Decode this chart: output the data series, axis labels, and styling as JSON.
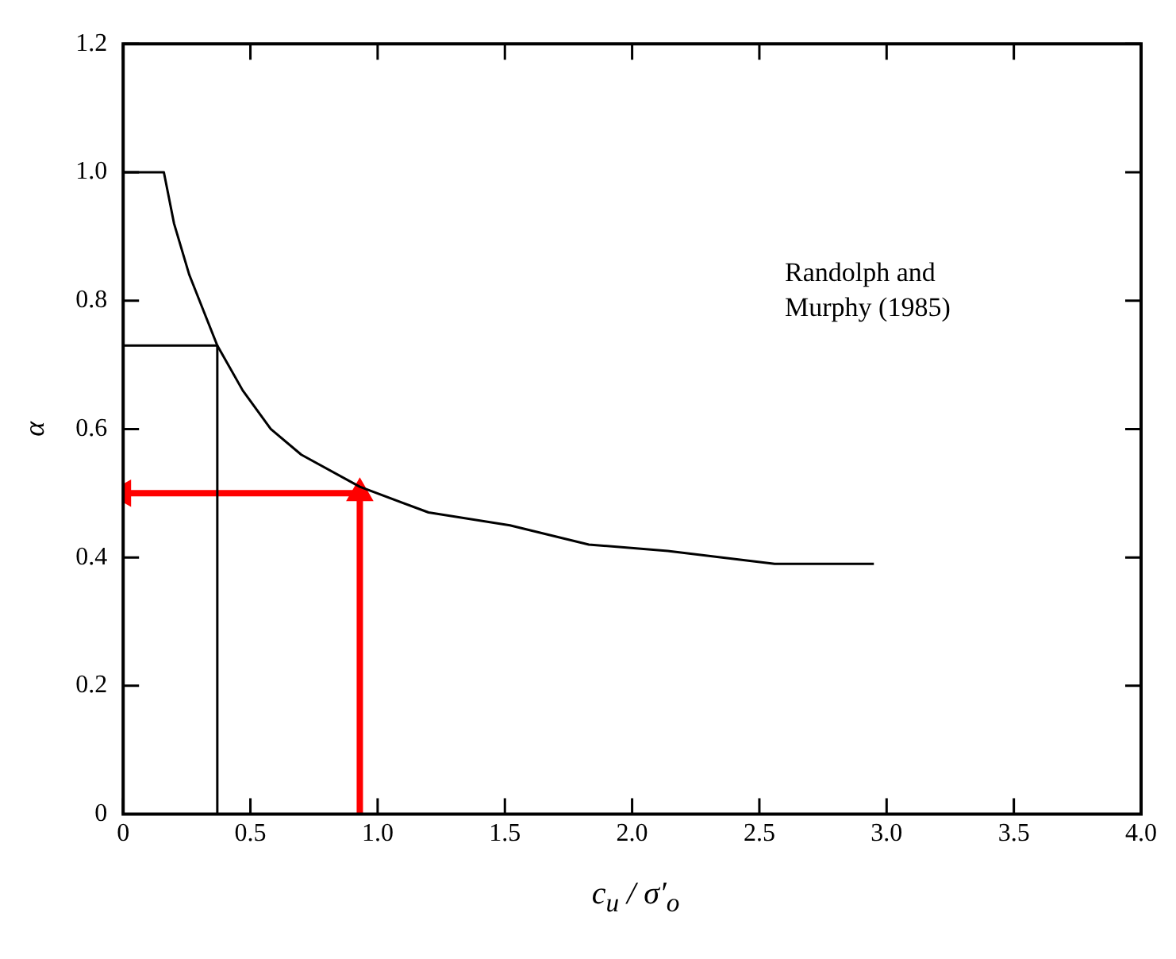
{
  "chart_data": {
    "type": "line",
    "xlabel": "c$_{u}$ / σ′$_{o}$",
    "ylabel": "α",
    "annotations": [
      "Randolph and Murphy (1985)"
    ],
    "xlim": [
      0,
      4
    ],
    "xticks": [
      0,
      0.5,
      {
        "value": 1,
        "label": "1.0"
      },
      1.5,
      {
        "value": 2,
        "label": "2.0"
      },
      2.5,
      {
        "value": 3,
        "label": "3.0"
      },
      3.5,
      {
        "value": 4,
        "label": "4.0"
      }
    ],
    "ylim": [
      0,
      1.2
    ],
    "yticks": [
      0,
      0.2,
      0.4,
      0.6,
      0.8,
      {
        "value": 1,
        "label": "1.0"
      },
      1.2
    ],
    "grid": false,
    "legend": false,
    "marker": "none",
    "series": [
      {
        "color": "#000000",
        "x": [
          0,
          0.16,
          0.2,
          0.26,
          0.37,
          0.47,
          0.58,
          0.7,
          0.93,
          1.2,
          1.52,
          1.83,
          2.14,
          2.56,
          2.95
        ],
        "values": [
          1,
          1,
          0.92,
          0.84,
          0.73,
          0.66,
          0.6,
          0.56,
          0.51,
          0.47,
          0.45,
          0.42,
          0.41,
          0.39,
          0.39
        ]
      },
      {
        "color": "#000000",
        "x": [
          0,
          0.37,
          0.37
        ],
        "values": [
          0.73,
          0.73,
          0
        ]
      },
      {
        "color": "#ff0000",
        "marker": "triangle",
        "x": [
          0.93,
          0.93
        ],
        "values": [
          0,
          0.5
        ]
      },
      {
        "color": "#ff0000",
        "marker": "triangle",
        "x": [
          0.93,
          0
        ],
        "values": [
          0.5,
          0.5
        ]
      }
    ]
  }
}
